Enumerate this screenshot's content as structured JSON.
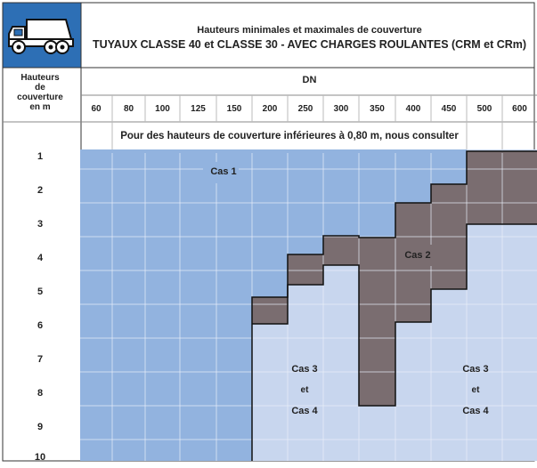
{
  "header": {
    "title_line1": "Hauteurs minimales et maximales de couverture",
    "title_line2": "TUYAUX CLASSE 40 et CLASSE 30 - AVEC CHARGES ROULANTES (CRM et CRm)",
    "truck_icon": "dump-truck-icon"
  },
  "table": {
    "row_header_lines": [
      "Hauteurs",
      "de",
      "couverture",
      "en m"
    ],
    "dn_label": "DN",
    "dn_values": [
      "60",
      "80",
      "100",
      "125",
      "150",
      "200",
      "250",
      "300",
      "350",
      "400",
      "450",
      "500",
      "600"
    ],
    "note": "Pour des hauteurs de couverture inférieures à 0,80 m, nous consulter",
    "height_labels": [
      "1",
      "2",
      "3",
      "4",
      "5",
      "6",
      "7",
      "8",
      "9",
      "10"
    ]
  },
  "cases": {
    "cas1": "Cas 1",
    "cas2": "Cas 2",
    "cas3": "Cas 3",
    "et": "et",
    "cas4": "Cas 4"
  },
  "colors": {
    "header_bg": "#2d6fb5",
    "cas1": "#92b3df",
    "cas2": "#7a6d70",
    "cas34": "#c8d6ee",
    "grid": "#e8eef8",
    "border": "#333333"
  }
}
